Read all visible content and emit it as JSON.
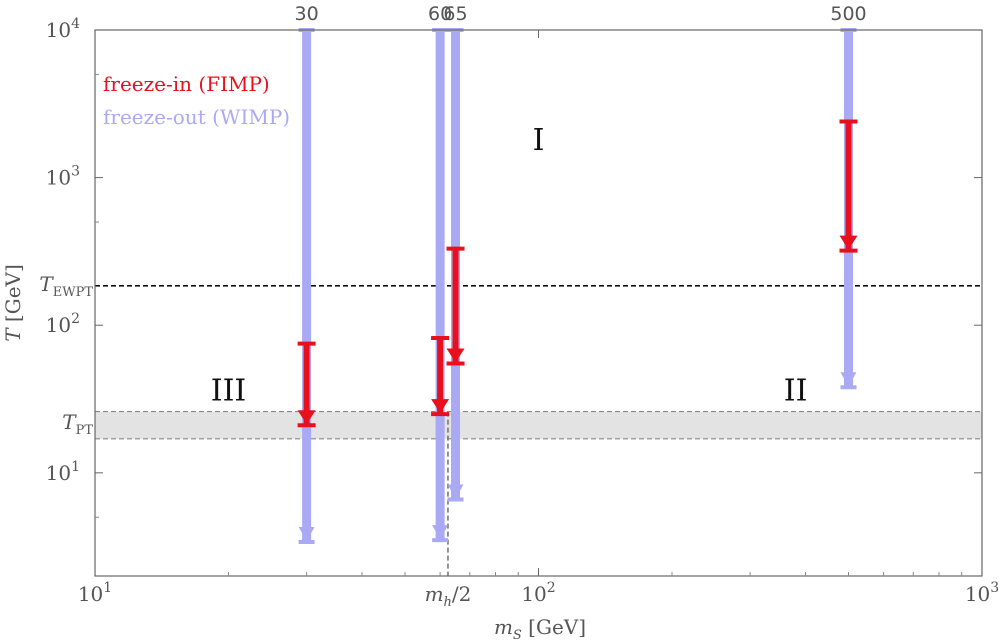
{
  "chart_data": {
    "type": "interval",
    "xlabel_main": "m",
    "xlabel_sub": "S",
    "xlabel_unit": " [GeV]",
    "ylabel_main": "T",
    "ylabel_unit": " [GeV]",
    "x_scale": "log",
    "y_scale": "log",
    "xlim": [
      10,
      1000
    ],
    "ylim": [
      2,
      10000
    ],
    "x_ticks": [
      {
        "value": 10,
        "base": "10",
        "exp": "1"
      },
      {
        "value": 100,
        "base": "10",
        "exp": "2"
      },
      {
        "value": 1000,
        "base": "10",
        "exp": "3"
      }
    ],
    "x_minor_ticks": [
      20,
      30,
      40,
      50,
      60,
      70,
      80,
      90,
      200,
      300,
      400,
      500,
      600,
      700,
      800,
      900
    ],
    "y_ticks": [
      {
        "value": 10,
        "base": "10",
        "exp": "1"
      },
      {
        "value": 100,
        "base": "10",
        "exp": "2"
      },
      {
        "value": 1000,
        "base": "10",
        "exp": "3"
      },
      {
        "value": 10000,
        "base": "10",
        "exp": "4"
      }
    ],
    "y_minor_ticks": [
      5,
      500,
      5000
    ],
    "mh_half": {
      "value": 62.5,
      "label_main": "m",
      "label_sub": "h",
      "label_rest": "/2"
    },
    "t_ewpt": {
      "value": 185,
      "label_main": "T",
      "label_sub": "EWPT"
    },
    "t_pt_band": {
      "low": 17,
      "high": 26,
      "label_main": "T",
      "label_sub": "PT"
    },
    "top_labels": [
      {
        "x": 30,
        "text": "30"
      },
      {
        "x": 60,
        "text": "60"
      },
      {
        "x": 65,
        "text": "65"
      },
      {
        "x": 500,
        "text": "500"
      }
    ],
    "regions": [
      {
        "name": "I",
        "x": 100,
        "y": 1800
      },
      {
        "name": "II",
        "x": 380,
        "y": 36
      },
      {
        "name": "III",
        "x": 20,
        "y": 36
      }
    ],
    "legend": [
      {
        "label": "freeze-in (FIMP)",
        "color": "#e8101d"
      },
      {
        "label": "freeze-out (WIMP)",
        "color": "#aaaaf4"
      }
    ],
    "series": [
      {
        "name": "freeze-out (WIMP)",
        "color": "#aaaaf4",
        "points": [
          {
            "x": 30,
            "top": 10000,
            "bottom": 3.4
          },
          {
            "x": 60,
            "top": 10000,
            "bottom": 3.5
          },
          {
            "x": 65,
            "top": 10000,
            "bottom": 6.6
          },
          {
            "x": 500,
            "top": 10000,
            "bottom": 38
          }
        ]
      },
      {
        "name": "freeze-in (FIMP)",
        "color": "#e8101d",
        "points": [
          {
            "x": 30,
            "top": 75,
            "bottom": 21
          },
          {
            "x": 60,
            "top": 82,
            "bottom": 25
          },
          {
            "x": 65,
            "top": 330,
            "bottom": 55
          },
          {
            "x": 500,
            "top": 2400,
            "bottom": 320
          }
        ]
      }
    ]
  }
}
